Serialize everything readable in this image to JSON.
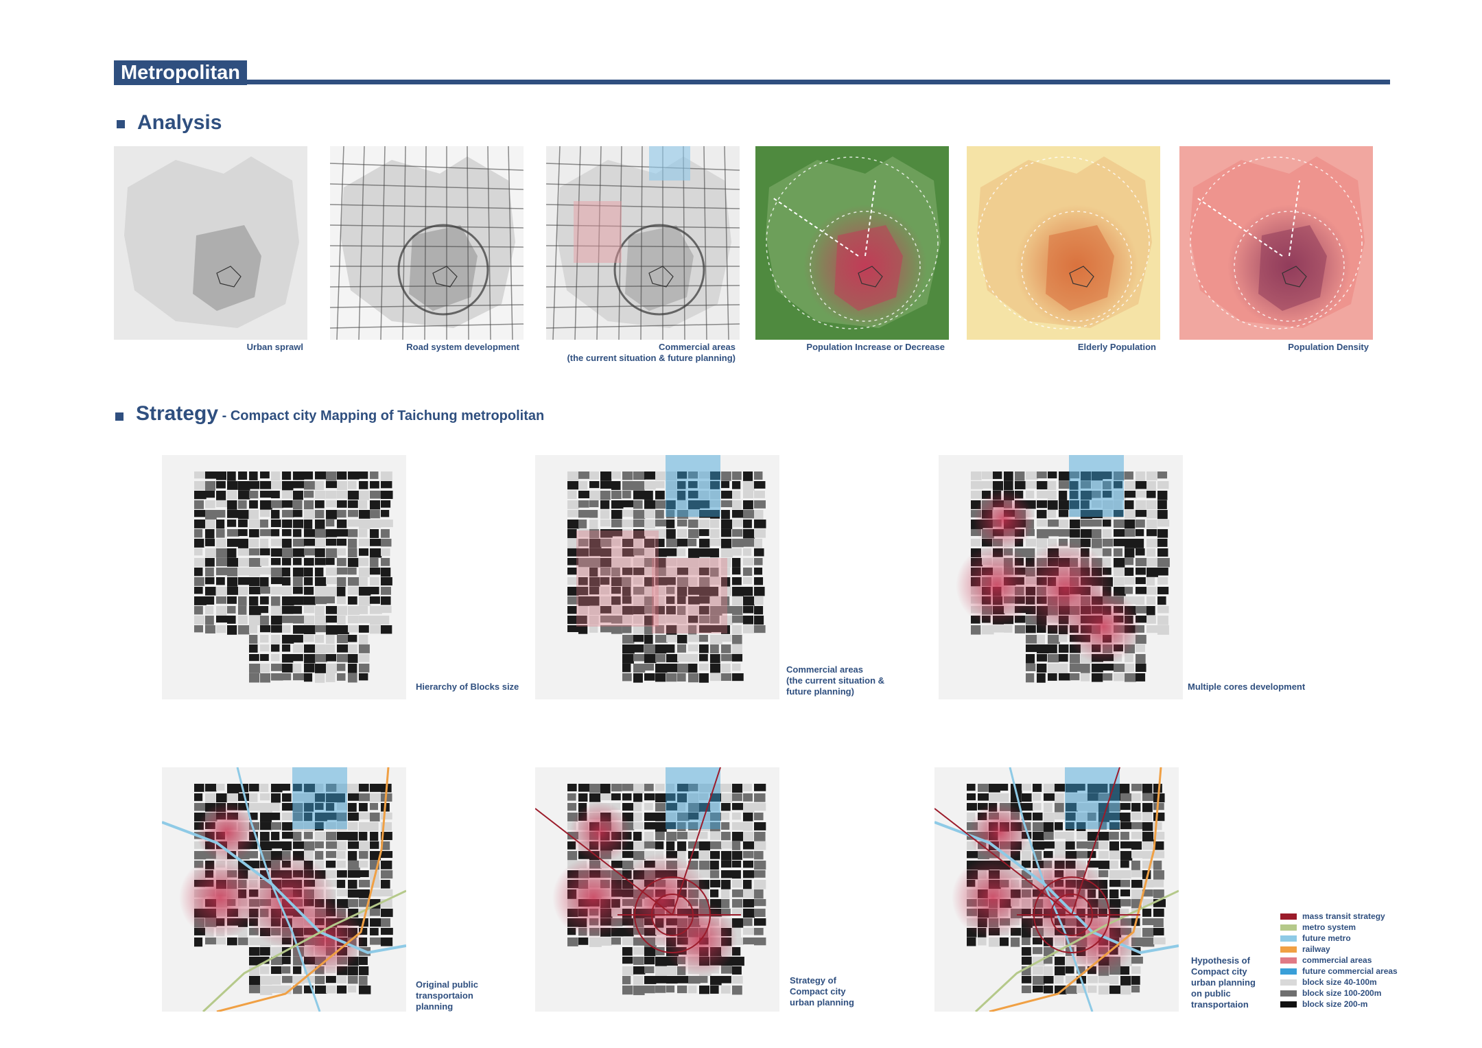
{
  "header": {
    "title": "Metropolitan"
  },
  "analysis": {
    "title": "Analysis",
    "panels": [
      {
        "caption": "Urban sprawl",
        "scheme": "gray"
      },
      {
        "caption": "Road system development",
        "scheme": "roads"
      },
      {
        "caption": "Commercial areas\n(the current situation & future planning)",
        "scheme": "commercial"
      },
      {
        "caption": "Population Increase or Decrease",
        "scheme": "green"
      },
      {
        "caption": "Elderly Population",
        "scheme": "yellow"
      },
      {
        "caption": "Population Density",
        "scheme": "red"
      }
    ]
  },
  "strategy": {
    "title": "Strategy",
    "subtitle": " - Compact city Mapping of  Taichung metropolitan",
    "maps": [
      {
        "caption": "Hierarchy of Blocks size"
      },
      {
        "caption": "Commercial areas\n(the current situation &\nfuture planning)"
      },
      {
        "caption": "Multiple cores development"
      },
      {
        "caption": "Original public\ntransportaion\nplanning"
      },
      {
        "caption": "Strategy of\nCompact city\nurban planning"
      },
      {
        "caption": "Hypothesis of\nCompact city\nurban planning\non public\ntransportaion"
      }
    ]
  },
  "legend": [
    {
      "label": "mass transit strategy",
      "color": "#9b1b2a"
    },
    {
      "label": "metro system",
      "color": "#b5c98a"
    },
    {
      "label": "future metro",
      "color": "#8ecae6"
    },
    {
      "label": "railway",
      "color": "#f0a044"
    },
    {
      "label": "commercial areas",
      "color": "#e07a86"
    },
    {
      "label": "future commercial areas",
      "color": "#3a9fd8"
    },
    {
      "label": "block size 40-100m",
      "color": "#d9d9d9"
    },
    {
      "label": "block size 100-200m",
      "color": "#6f6f6f"
    },
    {
      "label": "block size 200-m",
      "color": "#111111"
    }
  ]
}
